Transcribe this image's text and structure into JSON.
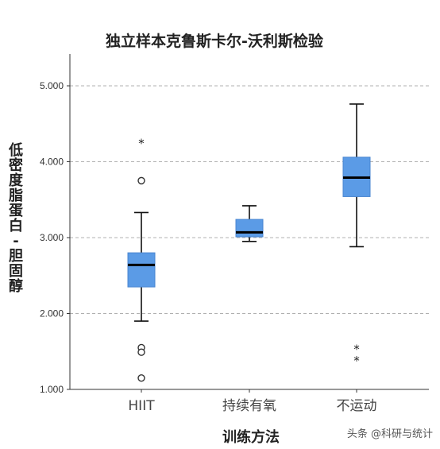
{
  "chart_data": {
    "type": "box",
    "title": "独立样本克鲁斯卡尔-沃利斯检验",
    "xlabel": "训练方法",
    "ylabel": "低密度脂蛋白-胆固醇",
    "ylim": [
      1.0,
      5.4
    ],
    "yticks": [
      "1.000",
      "2.000",
      "3.000",
      "4.000",
      "5.000"
    ],
    "grid": "horizontal dashed",
    "box_color": "#5b9be6",
    "categories": [
      "HIIT",
      "持续有氧",
      "不运动"
    ],
    "boxes": [
      {
        "category": "HIIT",
        "whisker_low": 1.9,
        "q1": 2.35,
        "median": 2.64,
        "q3": 2.8,
        "whisker_high": 3.33,
        "outliers": [
          3.75,
          1.55,
          1.49,
          1.15
        ],
        "extremes": [
          4.25
        ]
      },
      {
        "category": "持续有氧",
        "whisker_low": 2.95,
        "q1": 3.01,
        "median": 3.07,
        "q3": 3.24,
        "whisker_high": 3.42,
        "outliers": [],
        "extremes": []
      },
      {
        "category": "不运动",
        "whisker_low": 2.88,
        "q1": 3.54,
        "median": 3.79,
        "q3": 4.06,
        "whisker_high": 4.76,
        "outliers": [],
        "extremes": [
          1.54,
          1.39
        ]
      }
    ]
  },
  "watermark": "头条 @科研与统计"
}
